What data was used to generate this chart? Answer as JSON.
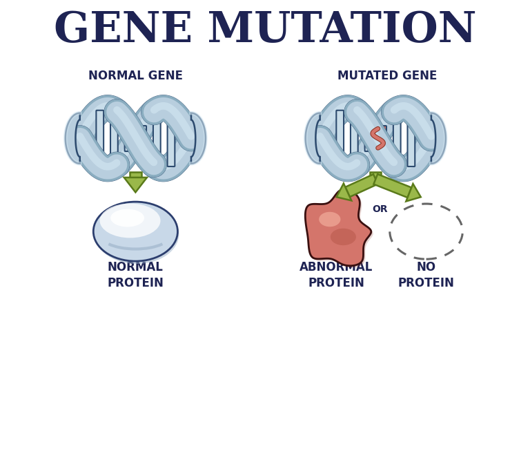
{
  "title": "GENE MUTATION",
  "title_color": "#1e2353",
  "title_fontsize": 44,
  "bg_color": "#ffffff",
  "label_normal_gene": "NORMAL GENE",
  "label_mutated_gene": "MUTATED GENE",
  "label_normal_protein": "NORMAL\nPROTEIN",
  "label_abnormal_protein": "ABNORMAL\nPROTEIN",
  "label_no_protein": "NO\nPROTEIN",
  "label_or": "OR",
  "label_color": "#1e2353",
  "label_gene_fontsize": 12,
  "label_protein_fontsize": 12,
  "dna_fill": "#b8cede",
  "dna_fill_light": "#d0e4f0",
  "dna_fill_dark": "#8aadc0",
  "dna_outline": "#2c4a6e",
  "dna_bar_fill": "#c8dce8",
  "dna_bar_outline": "#2c4a6e",
  "arrow_fill": "#9ab84a",
  "arrow_outline": "#5a7a1a",
  "mutation_fill": "#d4756b",
  "mutation_outline": "#8b3020",
  "normal_protein_edge": "#2c3e6e",
  "normal_protein_fill1": "#c8d8e8",
  "normal_protein_fill2": "#e8f2fa",
  "normal_protein_fill3": "#9ab0c8",
  "abnormal_protein_fill": "#d4756b",
  "abnormal_protein_outline": "#3a1010",
  "no_protein_outline": "#666666"
}
